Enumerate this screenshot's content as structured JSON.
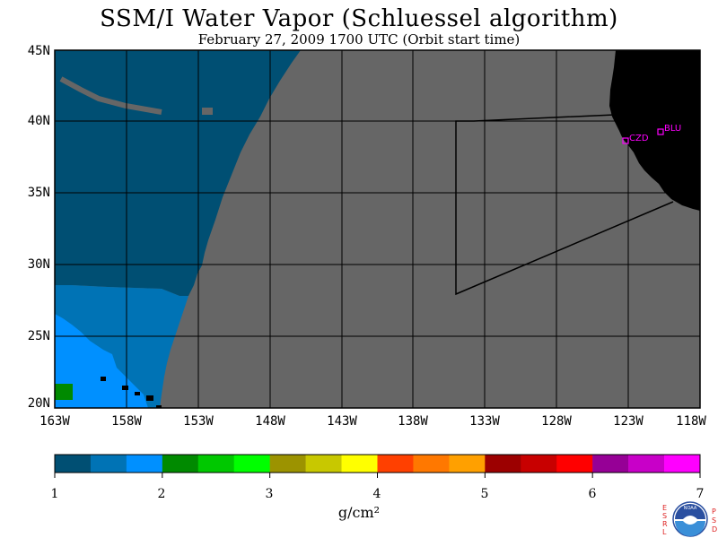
{
  "title": "SSM/I Water Vapor (Schluessel algorithm)",
  "subtitle": "February 27, 2009  1700 UTC  (Orbit start time)",
  "map": {
    "lat_labels": [
      "45N",
      "40N",
      "35N",
      "30N",
      "25N",
      "20N"
    ],
    "lon_labels": [
      "163W",
      "158W",
      "153W",
      "148W",
      "143W",
      "138W",
      "133W",
      "128W",
      "123W",
      "118W"
    ],
    "stations": [
      {
        "code": "CZD"
      },
      {
        "code": "BLU"
      }
    ],
    "colors": {
      "nodata": "#666666",
      "land": "#000000",
      "grid": "#000000",
      "station": "#ff00ff"
    }
  },
  "colorbar": {
    "colors": [
      "#004f73",
      "#0073b5",
      "#0090ff",
      "#008a00",
      "#00c800",
      "#00ff00",
      "#9c9300",
      "#c8c800",
      "#ffff00",
      "#ff4000",
      "#ff7800",
      "#ffa000",
      "#9c0000",
      "#c80000",
      "#ff0000",
      "#960096",
      "#c800c8",
      "#ff00ff"
    ],
    "ticks": [
      "1",
      "2",
      "3",
      "4",
      "5",
      "6",
      "7"
    ],
    "units": "g/cm²"
  },
  "logo": {
    "left_letters": [
      "E",
      "S",
      "R",
      "L"
    ],
    "right_letters": [
      "P",
      "S",
      "D"
    ],
    "text": "NOAA"
  }
}
